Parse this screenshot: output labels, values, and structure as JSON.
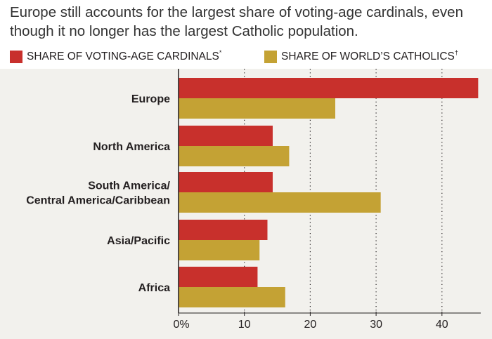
{
  "title": "Europe still accounts for the largest share of voting-age cardinals, even though it no longer has the largest Catholic population.",
  "legend": [
    {
      "label": "SHARE OF VOTING-AGE CARDINALS",
      "mark": "*",
      "color": "#c8302c"
    },
    {
      "label": "SHARE OF WORLD’S CATHOLICS",
      "mark": "†",
      "color": "#c4a234"
    }
  ],
  "chart_data": {
    "type": "bar",
    "orientation": "horizontal",
    "categories": [
      "Europe",
      "North America",
      "South America/ Central America/Caribbean",
      "Asia/Pacific",
      "Africa"
    ],
    "category_lines": [
      [
        "Europe"
      ],
      [
        "North America"
      ],
      [
        "South America/",
        "Central America/Caribbean"
      ],
      [
        "Asia/Pacific"
      ],
      [
        "Africa"
      ]
    ],
    "series": [
      {
        "name": "SHARE OF VOTING-AGE CARDINALS",
        "color": "#c8302c",
        "values": [
          45.5,
          14.3,
          14.3,
          13.5,
          12.0
        ]
      },
      {
        "name": "SHARE OF WORLD’S CATHOLICS",
        "color": "#c4a234",
        "values": [
          23.8,
          16.8,
          30.7,
          12.3,
          16.2
        ]
      }
    ],
    "xlim": [
      0,
      45.5
    ],
    "xticks": [
      0,
      10,
      20,
      30,
      40
    ],
    "xtick_labels": [
      "0%",
      "10",
      "20",
      "30",
      "40"
    ],
    "grid": "vertical dotted",
    "legend_position": "top-left"
  }
}
